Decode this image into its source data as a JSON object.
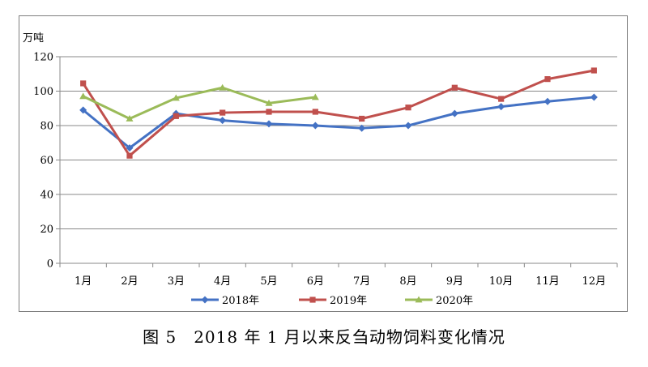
{
  "chart_data": {
    "type": "line",
    "title": "",
    "ylabel": "万吨",
    "xlabel": "",
    "ylim": [
      0,
      120
    ],
    "yticks": [
      0,
      20,
      40,
      60,
      80,
      100,
      120
    ],
    "categories": [
      "1月",
      "2月",
      "3月",
      "4月",
      "5月",
      "6月",
      "7月",
      "8月",
      "9月",
      "10月",
      "11月",
      "12月"
    ],
    "grid": true,
    "legend_position": "bottom",
    "series": [
      {
        "name": "2018年",
        "color": "#4472c4",
        "marker": "diamond",
        "values": [
          89,
          67,
          87,
          83,
          81,
          80,
          78.5,
          80,
          87,
          91,
          94,
          96.5
        ]
      },
      {
        "name": "2019年",
        "color": "#c0504d",
        "marker": "square",
        "values": [
          104.5,
          62.5,
          85.5,
          87.5,
          88,
          88,
          84,
          90.5,
          102,
          95.5,
          107,
          112
        ]
      },
      {
        "name": "2020年",
        "color": "#9bbb59",
        "marker": "triangle",
        "values": [
          97,
          84,
          96,
          102,
          93,
          96.5,
          null,
          null,
          null,
          null,
          null,
          null
        ]
      }
    ]
  },
  "caption": "图 5　2018 年 1 月以来反刍动物饲料变化情况"
}
